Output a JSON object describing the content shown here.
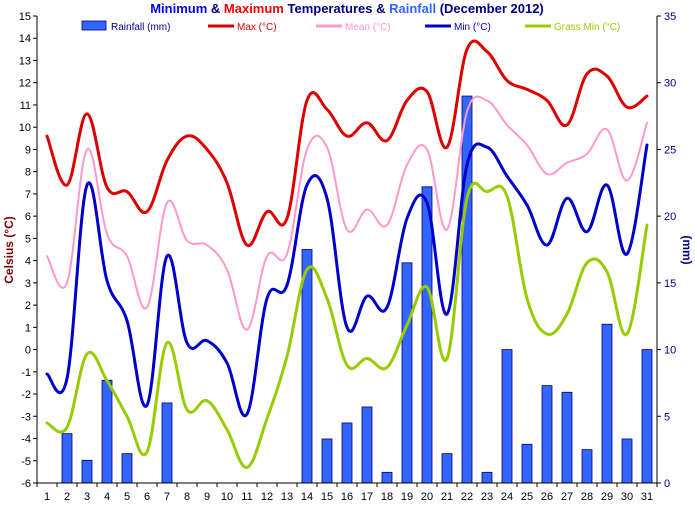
{
  "chart_data": {
    "type": "bar+line",
    "title_parts": [
      {
        "text": "Minimum",
        "color": "#0000ff"
      },
      {
        "text": " & ",
        "color": "#000080"
      },
      {
        "text": "Maximum",
        "color": "#ff0000"
      },
      {
        "text": " Temperatures & ",
        "color": "#000080"
      },
      {
        "text": "Rainfall",
        "color": "#3366ff"
      },
      {
        "text": " (December 2012)",
        "color": "#000080"
      }
    ],
    "ylabel": "Celsius (°C)",
    "y2label": "(mm)",
    "ylim": [
      -6,
      15
    ],
    "y2lim": [
      0,
      35
    ],
    "y_ticks": [
      "-6",
      "-5",
      "-4",
      "-3",
      "-2",
      "-1",
      "0",
      "1",
      "2",
      "3",
      "4",
      "5",
      "6",
      "7",
      "8",
      "9",
      "10",
      "11",
      "12",
      "13",
      "14",
      "15"
    ],
    "y2_ticks": [
      "0",
      "5",
      "10",
      "15",
      "20",
      "25",
      "30",
      "35"
    ],
    "x": [
      "1",
      "2",
      "3",
      "4",
      "5",
      "6",
      "7",
      "8",
      "9",
      "10",
      "11",
      "12",
      "13",
      "14",
      "15",
      "16",
      "17",
      "18",
      "19",
      "20",
      "21",
      "22",
      "23",
      "24",
      "25",
      "26",
      "27",
      "28",
      "29",
      "30",
      "31"
    ],
    "grid": false,
    "legend_position": "top",
    "series": [
      {
        "name": "Rainfall (mm)",
        "kind": "bar",
        "axis": "right",
        "color": "#3366ff",
        "values": [
          0,
          3.7,
          1.7,
          7.7,
          2.2,
          0,
          6,
          0,
          0,
          0,
          0,
          0,
          0,
          17.5,
          3.3,
          4.5,
          5.7,
          0.8,
          16.5,
          22.2,
          2.2,
          29,
          0.8,
          10,
          2.9,
          7.3,
          6.8,
          2.5,
          11.9,
          3.3,
          10
        ],
        "zero_days_drawn": false
      },
      {
        "name": "Max (°C)",
        "kind": "line",
        "axis": "left",
        "color": "#dd0000",
        "values": [
          9.6,
          7.4,
          10.6,
          7.3,
          7.1,
          6.2,
          8.5,
          9.6,
          9.0,
          7.5,
          4.7,
          6.2,
          5.9,
          11.2,
          10.8,
          9.6,
          10.2,
          9.4,
          11.2,
          11.6,
          9.1,
          13.5,
          13.4,
          12.1,
          11.7,
          11.2,
          10.1,
          12.4,
          12.3,
          10.9,
          11.4
        ]
      },
      {
        "name": "Mean (°C)",
        "kind": "line",
        "axis": "left",
        "color": "#ff99cc",
        "values": [
          4.2,
          3.0,
          9.0,
          5.2,
          4.2,
          1.9,
          6.6,
          4.9,
          4.7,
          3.6,
          0.9,
          4.2,
          4.3,
          9.0,
          9.1,
          5.4,
          6.3,
          5.6,
          8.3,
          9.0,
          5.4,
          10.7,
          11.2,
          10.1,
          9.2,
          7.9,
          8.4,
          8.8,
          9.9,
          7.6,
          10.2
        ]
      },
      {
        "name": "Min (°C)",
        "kind": "line",
        "axis": "left",
        "color": "#0000cc",
        "values": [
          -1.1,
          -1.3,
          7.4,
          3.1,
          1.3,
          -2.5,
          4.2,
          0.3,
          0.4,
          -0.6,
          -2.9,
          2.3,
          2.9,
          7.4,
          6.8,
          1.0,
          2.4,
          1.9,
          5.9,
          6.6,
          1.6,
          8.3,
          9.1,
          7.8,
          6.5,
          4.7,
          6.8,
          5.3,
          7.4,
          4.3,
          9.2
        ]
      },
      {
        "name": "Grass Min (°C)",
        "kind": "line",
        "axis": "left",
        "color": "#99cc00",
        "values": [
          -3.3,
          -3.5,
          -0.2,
          -1.4,
          -3.0,
          -4.6,
          0.3,
          -2.7,
          -2.3,
          -3.6,
          -5.3,
          -3.1,
          -0.3,
          3.6,
          2.3,
          -0.7,
          -0.4,
          -0.8,
          1.1,
          2.8,
          -0.4,
          6.8,
          7.1,
          6.9,
          2.3,
          0.7,
          1.6,
          3.9,
          3.5,
          0.7,
          5.6
        ]
      }
    ]
  }
}
